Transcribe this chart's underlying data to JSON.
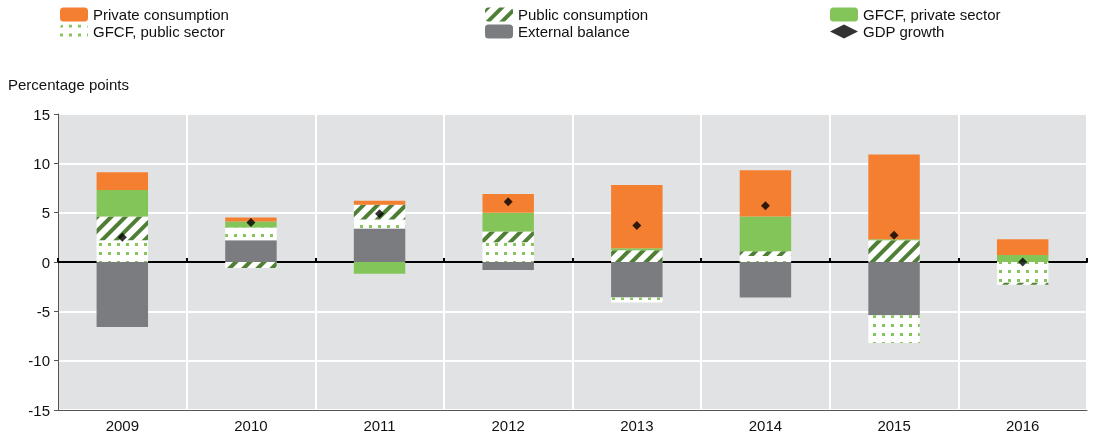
{
  "chart_data": {
    "type": "bar",
    "stacked": true,
    "ylabel": "Percentage points",
    "categories": [
      "2009",
      "2010",
      "2011",
      "2012",
      "2013",
      "2014",
      "2015",
      "2016"
    ],
    "series": [
      {
        "name": "External balance",
        "color": "#7b7c80",
        "values": [
          -6.6,
          2.2,
          3.4,
          -0.8,
          -3.6,
          -3.6,
          -5.4,
          null
        ]
      },
      {
        "name": "GFCF, public sector",
        "color": "#85c55b",
        "values": [
          2.2,
          1.3,
          0.9,
          2.0,
          -0.5,
          0.6,
          -2.8,
          -2.1
        ]
      },
      {
        "name": "Public consumption",
        "color": "#4e7f34",
        "values": [
          2.4,
          -0.6,
          1.5,
          1.1,
          1.2,
          0.5,
          2.2,
          -0.2
        ]
      },
      {
        "name": "GFCF, private sector",
        "color": "#84c55a",
        "values": [
          2.7,
          0.6,
          -1.2,
          1.9,
          0.2,
          3.5,
          0.1,
          0.7
        ]
      },
      {
        "name": "Private consumption",
        "color": "#f47f31",
        "values": [
          1.8,
          0.4,
          0.4,
          1.9,
          6.4,
          4.7,
          8.6,
          1.6
        ]
      },
      {
        "name": "GDP growth",
        "type": "scatter",
        "color": "#000000",
        "marker": "diamond",
        "values": [
          2.5,
          4.0,
          4.9,
          6.1,
          3.7,
          5.7,
          2.7,
          0
        ]
      }
    ],
    "ylim": [
      -15,
      15
    ],
    "yticks": [
      -15,
      -10,
      -5,
      0,
      5,
      10,
      15
    ],
    "grid": true,
    "legend": "top"
  }
}
